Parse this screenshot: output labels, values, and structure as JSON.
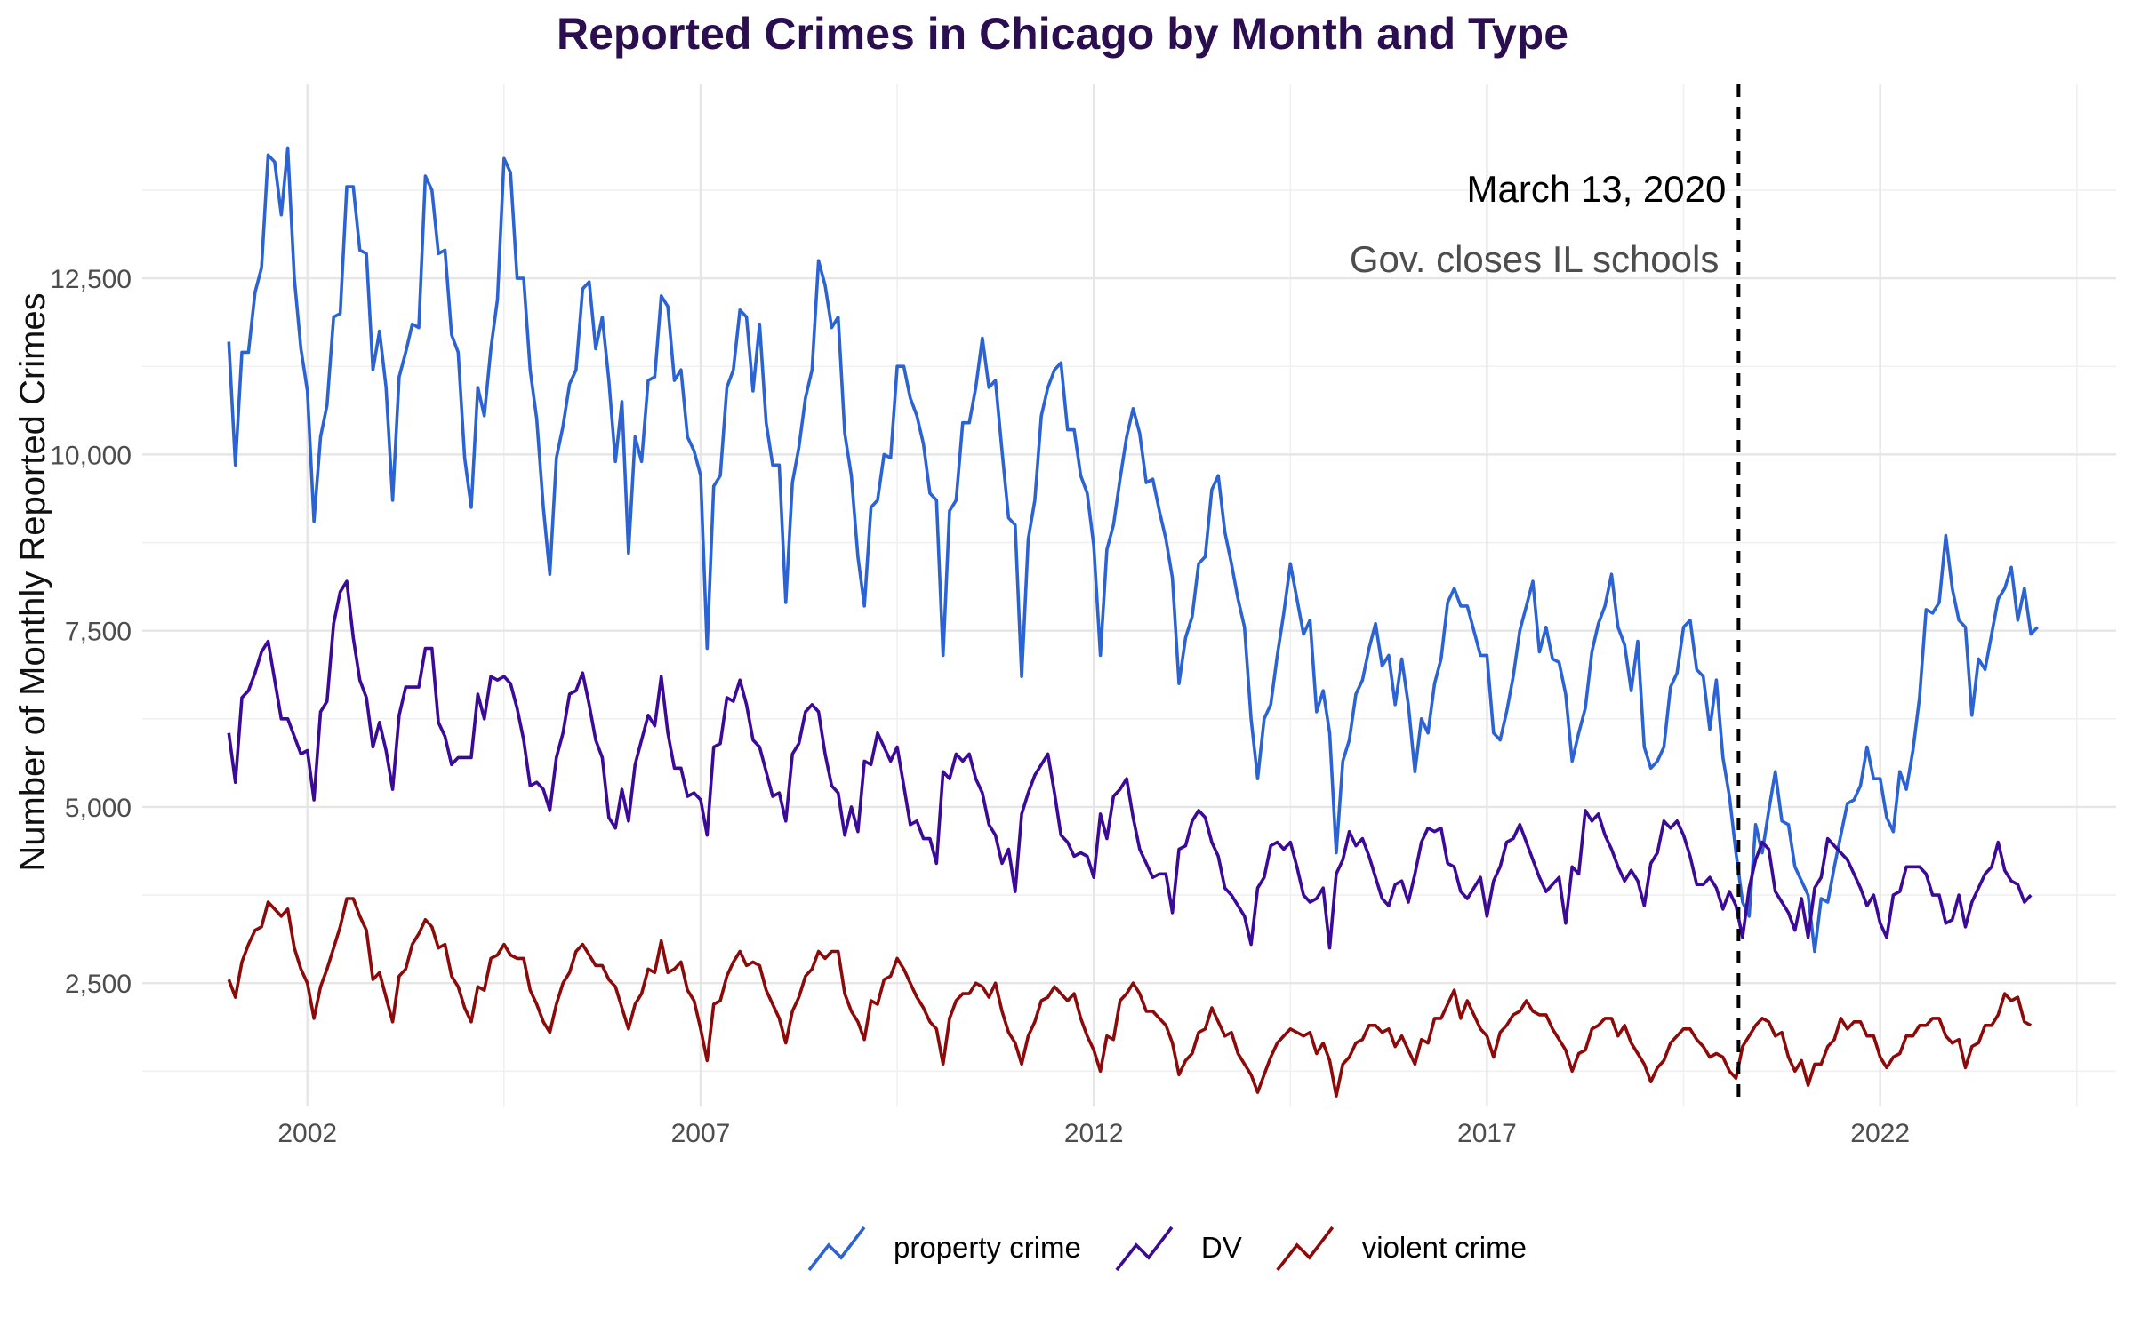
{
  "chart_data": {
    "type": "line",
    "title": "Reported Crimes in Chicago by Month and Type",
    "xlabel": "",
    "ylabel": "Number of Monthly Reported Crimes",
    "x_ticks": [
      "2002",
      "2007",
      "2012",
      "2017",
      "2022"
    ],
    "y_ticks": [
      "2,500",
      "5,000",
      "7,500",
      "10,000",
      "12,500"
    ],
    "ylim": [
      750,
      15250
    ],
    "xlim": [
      1999.9,
      2025.0
    ],
    "grid": true,
    "legend_position": "bottom",
    "x_start": "2001-01",
    "x_step": "month",
    "annotation": {
      "date": "2020-03-13",
      "line1": "March 13, 2020",
      "line2": "Gov. closes IL schools"
    },
    "colors": {
      "property crime": "#2c63d4",
      "DV": "#3c0a99",
      "violent crime": "#8c0a0a",
      "title": "#2a0e4f"
    },
    "series": [
      {
        "name": "property crime",
        "values": [
          11600,
          9850,
          11450,
          11450,
          12300,
          12650,
          14250,
          14150,
          13400,
          14350,
          12500,
          11500,
          10900,
          9050,
          10250,
          10700,
          11950,
          12000,
          13800,
          13800,
          12900,
          12850,
          11200,
          11750,
          10950,
          9350,
          11100,
          11450,
          11850,
          11800,
          13950,
          13750,
          12850,
          12900,
          11700,
          11450,
          9950,
          9250,
          10950,
          10550,
          11500,
          12200,
          14200,
          14000,
          12500,
          12500,
          11200,
          10500,
          9250,
          8300,
          9950,
          10400,
          11000,
          11200,
          12350,
          12450,
          11500,
          11950,
          11050,
          9900,
          10750,
          8600,
          10250,
          9900,
          11050,
          11100,
          12250,
          12100,
          11050,
          11200,
          10250,
          10050,
          9700,
          7250,
          9550,
          9700,
          10950,
          11200,
          12050,
          11950,
          10900,
          11850,
          10450,
          9850,
          9850,
          7900,
          9600,
          10100,
          10800,
          11200,
          12750,
          12400,
          11800,
          11950,
          10300,
          9700,
          8550,
          7850,
          9250,
          9350,
          10000,
          9950,
          11250,
          11250,
          10800,
          10550,
          10150,
          9450,
          9350,
          7150,
          9200,
          9350,
          10450,
          10450,
          10950,
          11650,
          10950,
          11050,
          10050,
          9100,
          9000,
          6850,
          8800,
          9350,
          10550,
          10950,
          11200,
          11300,
          10350,
          10350,
          9700,
          9450,
          8700,
          7150,
          8650,
          9000,
          9650,
          10250,
          10650,
          10300,
          9600,
          9650,
          9200,
          8800,
          8250,
          6750,
          7400,
          7700,
          8450,
          8550,
          9500,
          9700,
          8900,
          8450,
          7950,
          7550,
          6250,
          5400,
          6250,
          6450,
          7150,
          7750,
          8450,
          7950,
          7450,
          7650,
          6350,
          6650,
          6050,
          4350,
          5650,
          5950,
          6600,
          6800,
          7250,
          7600,
          7000,
          7150,
          6450,
          7100,
          6450,
          5500,
          6250,
          6050,
          6750,
          7100,
          7900,
          8100,
          7850,
          7850,
          7500,
          7150,
          7150,
          6050,
          5950,
          6350,
          6850,
          7500,
          7850,
          8200,
          7200,
          7550,
          7100,
          7050,
          6600,
          5650,
          6050,
          6400,
          7200,
          7600,
          7850,
          8300,
          7550,
          7300,
          6650,
          7350,
          5850,
          5550,
          5650,
          5850,
          6700,
          6900,
          7550,
          7650,
          6950,
          6850,
          6100,
          6800,
          5700,
          5150,
          4350,
          3650,
          3450,
          4750,
          4350,
          4950,
          5500,
          4800,
          4750,
          4150,
          3950,
          3750,
          2950,
          3700,
          3650,
          4150,
          4600,
          5050,
          5100,
          5300,
          5850,
          5400,
          5400,
          4850,
          4650,
          5500,
          5250,
          5800,
          6550,
          7800,
          7750,
          7900,
          8850,
          8100,
          7650,
          7550,
          6300,
          7100,
          6950,
          7450,
          7950,
          8100,
          8400,
          7650,
          8100,
          7450,
          7550
        ]
      },
      {
        "name": "DV",
        "values": [
          6050,
          5350,
          6550,
          6650,
          6900,
          7200,
          7350,
          6800,
          6250,
          6250,
          6000,
          5750,
          5800,
          5100,
          6350,
          6500,
          7600,
          8050,
          8200,
          7400,
          6800,
          6550,
          5850,
          6200,
          5800,
          5250,
          6300,
          6700,
          6700,
          6700,
          7250,
          7250,
          6200,
          6000,
          5600,
          5700,
          5700,
          5700,
          6600,
          6250,
          6850,
          6800,
          6850,
          6750,
          6400,
          5950,
          5300,
          5350,
          5250,
          4950,
          5700,
          6050,
          6600,
          6650,
          6900,
          6450,
          5950,
          5700,
          4850,
          4700,
          5250,
          4800,
          5600,
          5950,
          6300,
          6150,
          6850,
          6050,
          5550,
          5550,
          5150,
          5200,
          5100,
          4600,
          5850,
          5900,
          6550,
          6500,
          6800,
          6450,
          5950,
          5850,
          5500,
          5150,
          5200,
          4800,
          5750,
          5900,
          6350,
          6450,
          6350,
          5750,
          5300,
          5200,
          4600,
          5000,
          4650,
          5650,
          5600,
          6050,
          5850,
          5650,
          5850,
          5300,
          4750,
          4800,
          4550,
          4550,
          4200,
          5500,
          5400,
          5750,
          5650,
          5750,
          5400,
          5200,
          4750,
          4600,
          4200,
          4400,
          3800,
          4900,
          5200,
          5450,
          5600,
          5750,
          5200,
          4600,
          4500,
          4300,
          4350,
          4300,
          4000,
          4900,
          4550,
          5150,
          5250,
          5400,
          4850,
          4400,
          4200,
          4000,
          4050,
          4050,
          3500,
          4400,
          4450,
          4800,
          4950,
          4850,
          4500,
          4300,
          3850,
          3750,
          3600,
          3450,
          3050,
          3850,
          4000,
          4450,
          4500,
          4400,
          4500,
          4150,
          3750,
          3650,
          3700,
          3850,
          3000,
          4050,
          4250,
          4650,
          4450,
          4550,
          4300,
          4000,
          3700,
          3600,
          3900,
          3950,
          3650,
          4050,
          4500,
          4700,
          4650,
          4700,
          4200,
          4150,
          3800,
          3700,
          3850,
          4000,
          3450,
          3950,
          4150,
          4500,
          4550,
          4750,
          4500,
          4250,
          4000,
          3800,
          3900,
          4000,
          3350,
          4150,
          4050,
          4950,
          4800,
          4900,
          4600,
          4400,
          4150,
          3950,
          4100,
          3950,
          3600,
          4200,
          4350,
          4800,
          4700,
          4800,
          4600,
          4300,
          3900,
          3900,
          4000,
          3850,
          3550,
          3800,
          3600,
          3150,
          3850,
          4250,
          4500,
          4400,
          3800,
          3650,
          3500,
          3250,
          3700,
          3150,
          3850,
          4000,
          4550,
          4450,
          4350,
          4250,
          4050,
          3850,
          3600,
          3750,
          3350,
          3150,
          3750,
          3800,
          4150,
          4150,
          4150,
          4050,
          3750,
          3750,
          3350,
          3400,
          3750,
          3300,
          3650,
          3850,
          4050,
          4150,
          4500,
          4100,
          3950,
          3900,
          3650,
          3750
        ]
      },
      {
        "name": "violent crime",
        "values": [
          2550,
          2300,
          2800,
          3050,
          3250,
          3300,
          3650,
          3550,
          3450,
          3550,
          3000,
          2700,
          2500,
          2000,
          2450,
          2700,
          3000,
          3300,
          3700,
          3700,
          3450,
          3250,
          2550,
          2650,
          2300,
          1950,
          2600,
          2700,
          3050,
          3200,
          3400,
          3300,
          3000,
          3050,
          2600,
          2450,
          2150,
          1950,
          2450,
          2400,
          2850,
          2900,
          3050,
          2900,
          2850,
          2850,
          2400,
          2200,
          1950,
          1800,
          2200,
          2500,
          2650,
          2950,
          3050,
          2900,
          2750,
          2750,
          2550,
          2450,
          2150,
          1850,
          2200,
          2350,
          2700,
          2650,
          3100,
          2650,
          2700,
          2800,
          2400,
          2250,
          1850,
          1400,
          2200,
          2250,
          2600,
          2800,
          2950,
          2750,
          2800,
          2750,
          2400,
          2200,
          2000,
          1650,
          2100,
          2300,
          2600,
          2700,
          2950,
          2850,
          2950,
          2950,
          2350,
          2100,
          1950,
          1700,
          2250,
          2200,
          2550,
          2600,
          2850,
          2700,
          2500,
          2300,
          2150,
          1950,
          1850,
          1350,
          2000,
          2250,
          2350,
          2350,
          2500,
          2450,
          2300,
          2500,
          2100,
          1800,
          1650,
          1350,
          1750,
          1950,
          2250,
          2300,
          2450,
          2350,
          2250,
          2350,
          2000,
          1750,
          1550,
          1250,
          1750,
          1700,
          2250,
          2350,
          2500,
          2350,
          2100,
          2100,
          2000,
          1900,
          1650,
          1200,
          1400,
          1500,
          1800,
          1850,
          2150,
          1950,
          1750,
          1800,
          1500,
          1350,
          1200,
          950,
          1200,
          1450,
          1650,
          1750,
          1850,
          1800,
          1750,
          1800,
          1500,
          1650,
          1400,
          900,
          1350,
          1450,
          1650,
          1700,
          1900,
          1900,
          1800,
          1850,
          1600,
          1750,
          1550,
          1350,
          1700,
          1650,
          2000,
          2000,
          2200,
          2400,
          2000,
          2250,
          2050,
          1850,
          1750,
          1450,
          1800,
          1900,
          2050,
          2100,
          2250,
          2100,
          2050,
          2050,
          1850,
          1700,
          1550,
          1250,
          1500,
          1550,
          1850,
          1900,
          2000,
          2000,
          1750,
          1900,
          1650,
          1500,
          1350,
          1100,
          1300,
          1400,
          1650,
          1750,
          1850,
          1850,
          1700,
          1600,
          1450,
          1500,
          1450,
          1250,
          1150,
          1600,
          1750,
          1900,
          2000,
          1950,
          1750,
          1800,
          1450,
          1250,
          1400,
          1050,
          1350,
          1350,
          1600,
          1700,
          2000,
          1850,
          1950,
          1950,
          1750,
          1750,
          1450,
          1300,
          1450,
          1500,
          1750,
          1750,
          1900,
          1900,
          2000,
          2000,
          1750,
          1650,
          1700,
          1300,
          1600,
          1650,
          1900,
          1900,
          2050,
          2350,
          2250,
          2300,
          1950,
          1900
        ]
      }
    ]
  }
}
